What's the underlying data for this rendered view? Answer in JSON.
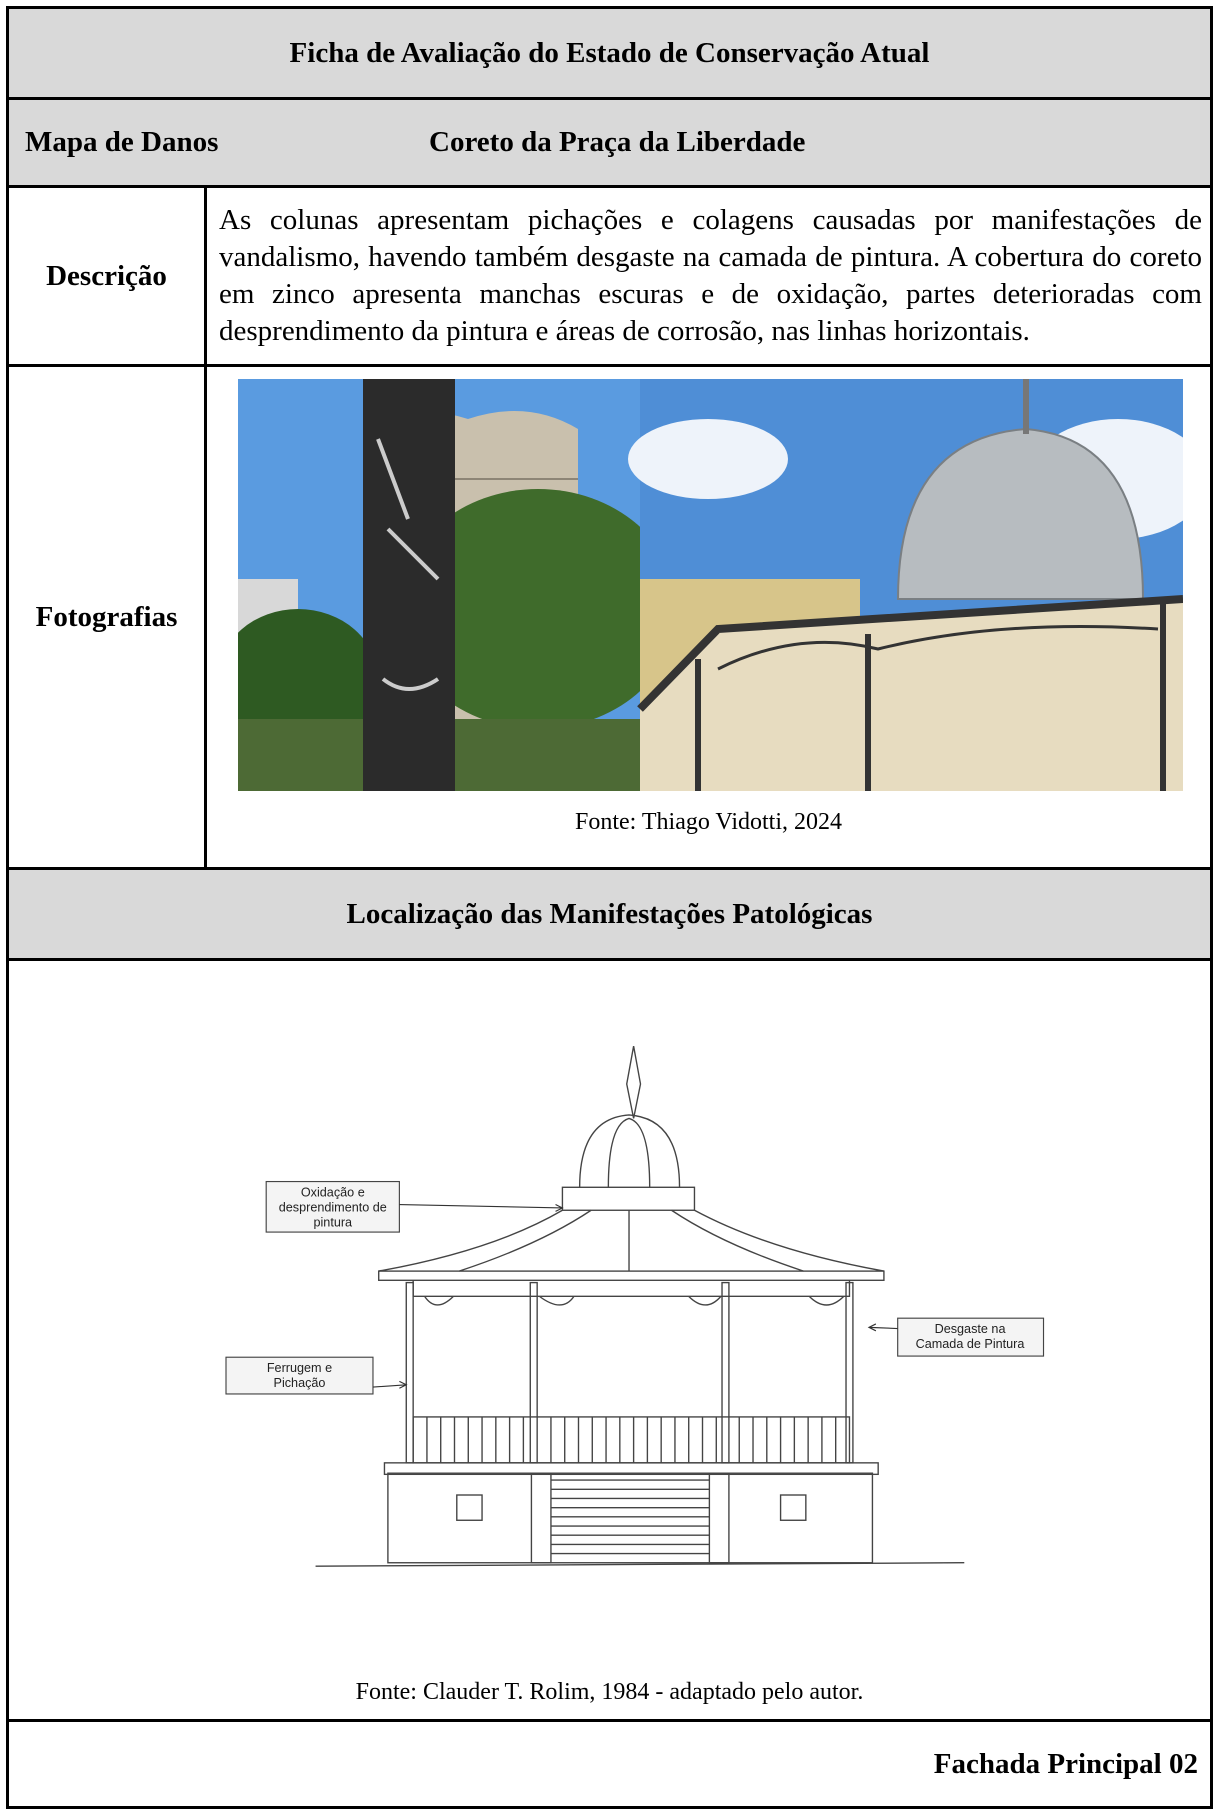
{
  "header": {
    "title": "Ficha de Avaliação do Estado de Conservação Atual"
  },
  "subheader": {
    "label": "Mapa de Danos",
    "subject": "Coreto da Praça da Liberdade"
  },
  "description": {
    "label": "Descrição",
    "text": "As colunas apresentam pichações e colagens causadas por manifestações de vandalismo, havendo também desgaste na camada de pintura. A cobertura do coreto em zinco apresenta manchas escuras e de oxidação, partes deterioradas com desprendimento da pintura e áreas de corrosão, nas linhas horizontais."
  },
  "photos": {
    "label": "Fotografias",
    "source": "Fonte: Thiago Vidotti, 2024"
  },
  "location": {
    "title": "Localização das Manifestações Patológicas",
    "callouts": [
      {
        "lines": [
          "Oxidação e",
          "desprendimento de",
          "pintura"
        ]
      },
      {
        "lines": [
          "Ferrugem e",
          "Pichação"
        ]
      },
      {
        "lines": [
          "Desgaste na",
          "Camada de Pintura"
        ]
      }
    ],
    "source": "Fonte: Clauder T. Rolim, 1984 - adaptado pelo autor."
  },
  "footer": {
    "title": "Fachada Principal 02"
  }
}
